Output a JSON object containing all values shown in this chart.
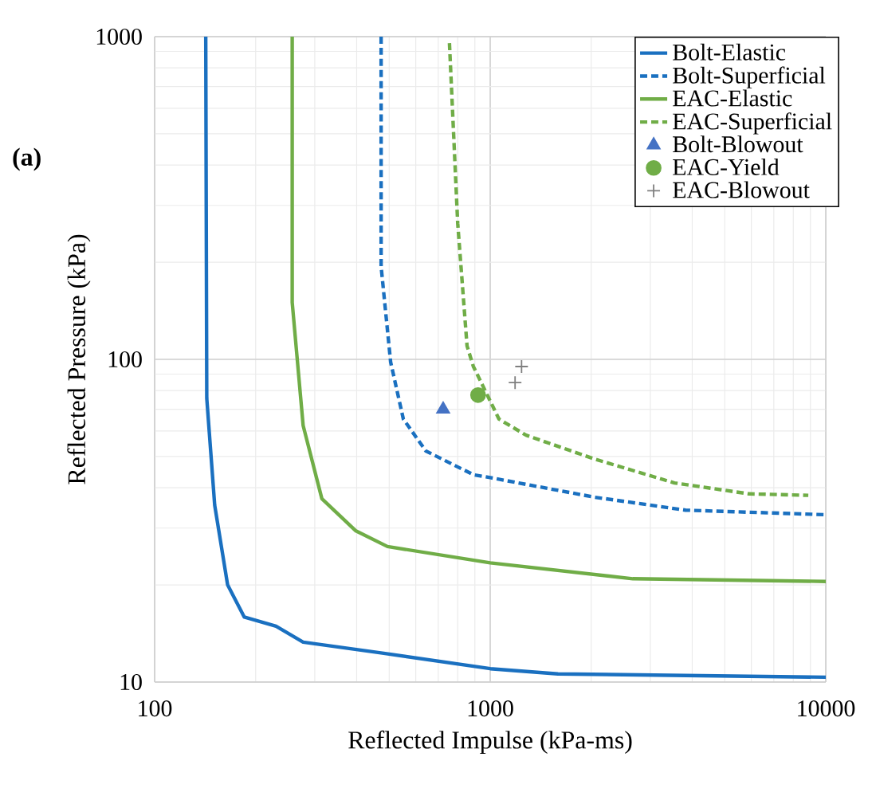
{
  "chart_data": {
    "type": "line",
    "xlabel": "Reflected Impulse (kPa-ms)",
    "ylabel": "Reflected Pressure (kPa)",
    "log": "xy",
    "xlim": [
      100,
      10000
    ],
    "ylim": [
      10,
      1000
    ],
    "xticks": [
      100,
      1000,
      10000
    ],
    "yticks": [
      10,
      100,
      1000
    ],
    "grid": true,
    "legend": "top right",
    "annotations": [
      "(a)"
    ],
    "series": [
      {
        "name": "Bolt-Elastic",
        "line_style": "solid",
        "marker": "none",
        "color": "#1a70c0",
        "x": [
          142,
          143,
          151,
          165,
          185,
          230,
          277,
          477,
          1000,
          1592,
          10000
        ],
        "values": [
          1000,
          75.7,
          35.3,
          20.0,
          15.9,
          14.9,
          13.3,
          12.3,
          11.0,
          10.6,
          10.35
        ]
      },
      {
        "name": "Bolt-Superficial",
        "line_style": "dashed",
        "marker": "none",
        "color": "#1a70c0",
        "x": [
          473,
          473,
          505,
          551,
          643,
          891,
          1000,
          2046,
          3820,
          10000
        ],
        "values": [
          1000,
          194,
          98,
          65.3,
          52,
          43.9,
          43,
          37.4,
          34.1,
          33
        ]
      },
      {
        "name": "EAC-Elastic",
        "line_style": "solid",
        "marker": "none",
        "color": "#70ad47",
        "x": [
          257,
          257,
          277,
          315,
          398,
          494,
          1000,
          2661,
          10000
        ],
        "values": [
          1000,
          150,
          62.4,
          37,
          29.4,
          26.3,
          23.4,
          20.9,
          20.5
        ]
      },
      {
        "name": "EAC-Superficial",
        "line_style": "dashed",
        "marker": "none",
        "color": "#70ad47",
        "x": [
          756,
          800,
          853,
          891,
          1062,
          1279,
          2046,
          3540,
          5915,
          8870
        ],
        "values": [
          955,
          264,
          110,
          95,
          65.3,
          58.2,
          49.1,
          41.4,
          38.3,
          37.9
        ]
      },
      {
        "name": "Bolt-Blowout",
        "type": "scatter",
        "marker": "triangle",
        "color": "#4472c4",
        "x": [
          724
        ],
        "values": [
          70
        ]
      },
      {
        "name": "EAC-Yield",
        "type": "scatter",
        "marker": "circle",
        "color": "#70ad47",
        "x": [
          920
        ],
        "values": [
          77.5
        ]
      },
      {
        "name": "EAC-Blowout",
        "type": "scatter",
        "marker": "cross",
        "color": "#7f7f7f",
        "x": [
          1186,
          1240
        ],
        "values": [
          84.7,
          95
        ]
      }
    ]
  }
}
